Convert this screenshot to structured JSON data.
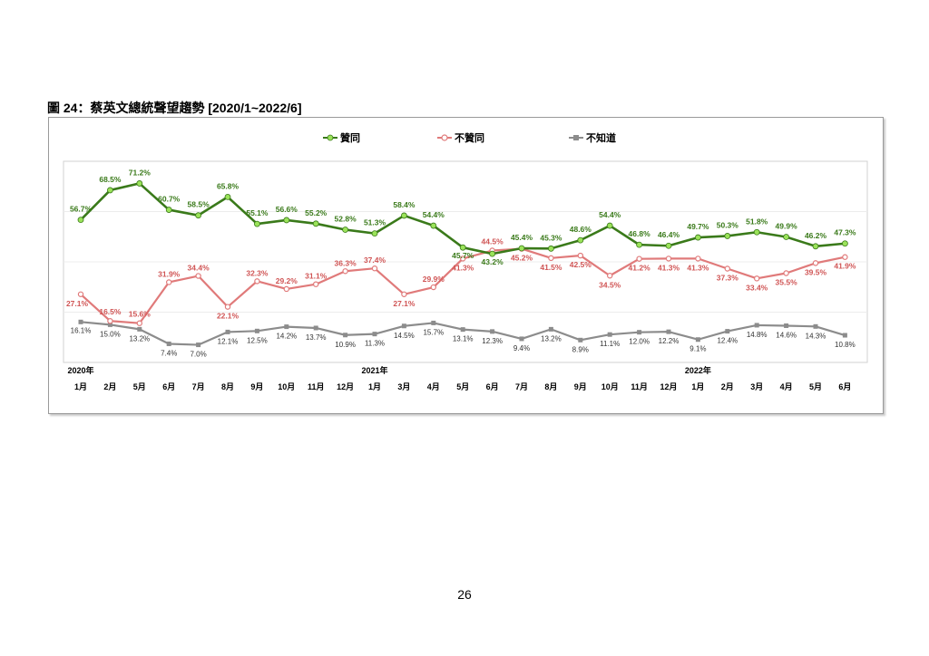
{
  "figure_title": "圖 24：蔡英文總統聲望趨勢  [2020/1~2022/6]",
  "page_number": "26",
  "colors": {
    "approve": "#3a7a1a",
    "approve_marker": "#9be35a",
    "disapprove": "#e07a7a",
    "disapprove_text": "#d05555",
    "unknown": "#8c8c8c"
  },
  "chart_data": {
    "type": "line",
    "title": "",
    "xlabel": "",
    "ylabel": "",
    "ylim": [
      0,
      80
    ],
    "grid": true,
    "legend_placement": "top",
    "year_labels": [
      {
        "index": 0,
        "label": "2020年"
      },
      {
        "index": 10,
        "label": "2021年"
      },
      {
        "index": 21,
        "label": "2022年"
      }
    ],
    "categories": [
      "1月",
      "2月",
      "5月",
      "6月",
      "7月",
      "8月",
      "9月",
      "10月",
      "11月",
      "12月",
      "1月",
      "3月",
      "4月",
      "5月",
      "6月",
      "7月",
      "8月",
      "9月",
      "10月",
      "11月",
      "12月",
      "1月",
      "2月",
      "3月",
      "4月",
      "5月",
      "6月"
    ],
    "series": [
      {
        "name": "贊同",
        "key": "approve",
        "values": [
          56.7,
          68.5,
          71.2,
          60.7,
          58.5,
          65.8,
          55.1,
          56.6,
          55.2,
          52.8,
          51.3,
          58.4,
          54.4,
          45.7,
          43.2,
          45.4,
          45.3,
          48.6,
          54.4,
          46.8,
          46.4,
          49.7,
          50.3,
          51.8,
          49.9,
          46.2,
          47.3
        ]
      },
      {
        "name": "不贊同",
        "key": "disapprove",
        "values": [
          27.1,
          16.5,
          15.6,
          31.9,
          34.4,
          22.1,
          32.3,
          29.2,
          31.1,
          36.3,
          37.4,
          27.1,
          29.9,
          41.3,
          44.5,
          45.2,
          41.5,
          42.5,
          34.5,
          41.2,
          41.3,
          41.3,
          37.3,
          33.4,
          35.5,
          39.5,
          41.9
        ]
      },
      {
        "name": "不知道",
        "key": "unknown",
        "values": [
          16.1,
          15.0,
          13.2,
          7.4,
          7.0,
          12.1,
          12.5,
          14.2,
          13.7,
          10.9,
          11.3,
          14.5,
          15.7,
          13.1,
          12.3,
          9.4,
          13.2,
          8.9,
          11.1,
          12.0,
          12.2,
          9.1,
          12.4,
          14.8,
          14.6,
          14.3,
          10.8
        ]
      }
    ]
  }
}
